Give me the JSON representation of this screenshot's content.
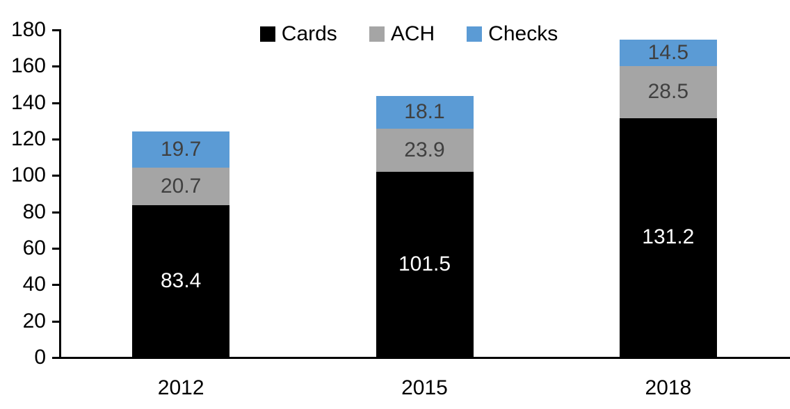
{
  "chart_data": {
    "type": "bar",
    "stacked": true,
    "title": "",
    "xlabel": "",
    "ylabel": "",
    "categories": [
      "2012",
      "2015",
      "2018"
    ],
    "series": [
      {
        "name": "Cards",
        "color": "#000000",
        "label_color": "#ffffff",
        "values": [
          83.4,
          101.5,
          131.2
        ]
      },
      {
        "name": "ACH",
        "color": "#a5a5a5",
        "label_color": "#404040",
        "values": [
          20.7,
          23.9,
          28.5
        ]
      },
      {
        "name": "Checks",
        "color": "#5b9bd5",
        "label_color": "#404040",
        "values": [
          19.7,
          18.1,
          14.5
        ]
      }
    ],
    "totals": [
      123.8,
      143.5,
      174.2
    ],
    "ylim": [
      0,
      180
    ],
    "yticks": [
      0,
      20,
      40,
      60,
      80,
      100,
      120,
      140,
      160,
      180
    ],
    "legend_position": "top-center",
    "grid": false,
    "axis_color": "#000000",
    "background_color": "#ffffff"
  }
}
